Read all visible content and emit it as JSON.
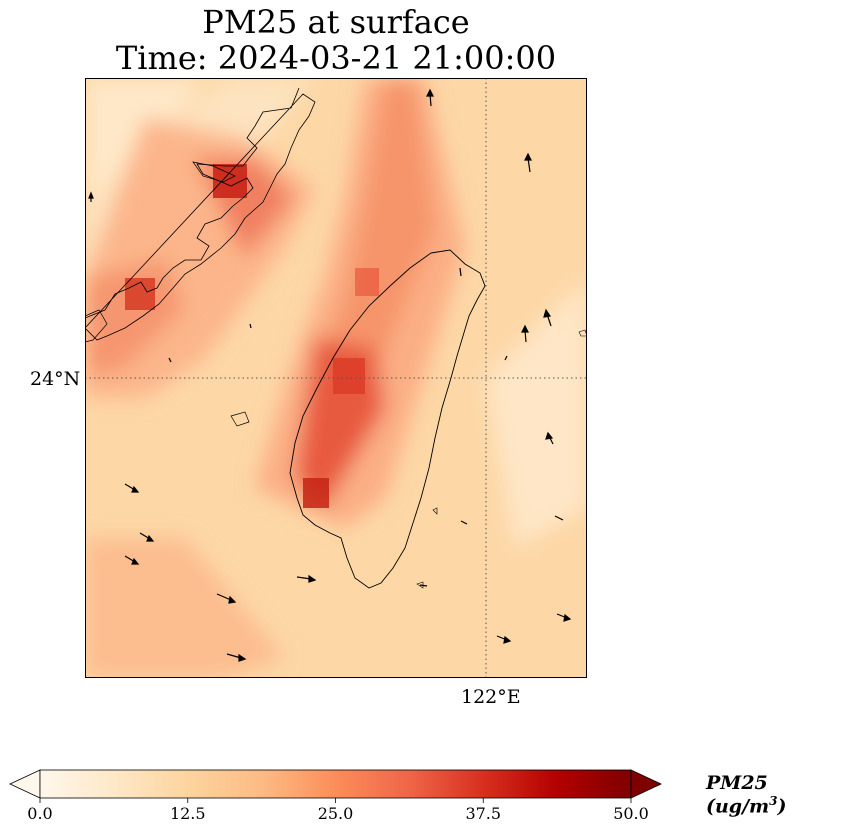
{
  "title": {
    "line1": "PM25 at surface",
    "line2": "Time: 2024-03-21 21:00:00"
  },
  "axes": {
    "lat_tick": "24°N",
    "lon_tick": "122°E",
    "lat_value": 24,
    "lon_value": 122,
    "gridlines": "dotted"
  },
  "colorbar": {
    "label_main": "PM25 (ug/m",
    "label_exp": "3",
    "label_close": ")",
    "min": 0.0,
    "max": 50.0,
    "ticks": [
      "0.0",
      "12.5",
      "25.0",
      "37.5",
      "50.0"
    ],
    "extend": "both",
    "colormap": "OrRd",
    "colors": [
      "#fff7ec",
      "#fee8c8",
      "#fdd49e",
      "#fdbb84",
      "#fc8d59",
      "#ef6548",
      "#d7301f",
      "#b30000",
      "#7f0000"
    ]
  },
  "features": [
    "Taiwan coastline",
    "Fujian coastline",
    "wind vectors"
  ]
}
